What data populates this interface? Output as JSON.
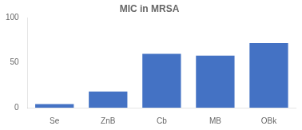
{
  "chart_data": {
    "type": "bar",
    "title": "MIC in MRSA",
    "categories": [
      "Se",
      "ZnB",
      "Cb",
      "MB",
      "OBk"
    ],
    "values": [
      4,
      18,
      60,
      58,
      72
    ],
    "color": "#4472c4",
    "ylim": [
      0,
      100
    ],
    "yticks": [
      0,
      50,
      100
    ],
    "grid": false
  }
}
